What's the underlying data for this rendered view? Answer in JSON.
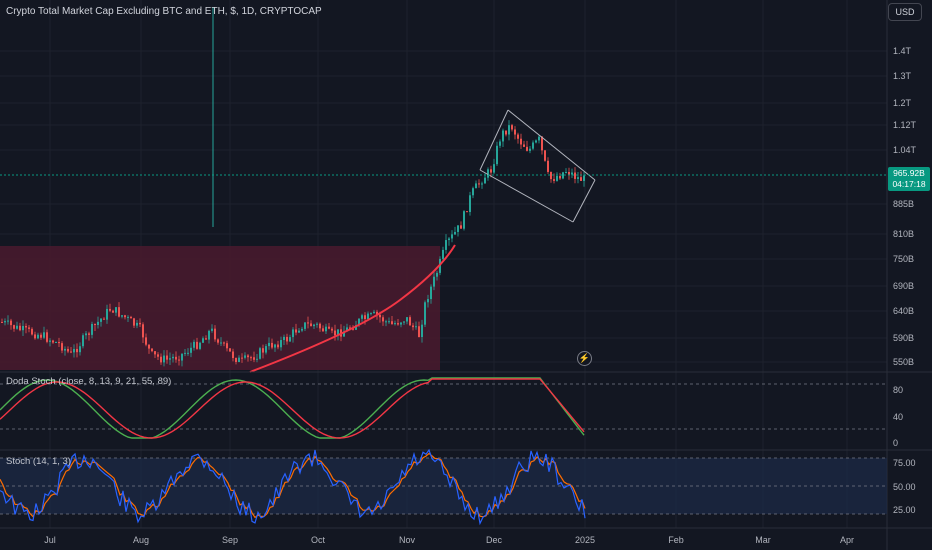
{
  "header": {
    "title": "Crypto Total Market Cap Excluding BTC and ETH, $, 1D, CRYPTOCAP",
    "currency": "USD"
  },
  "price_axis": {
    "labels": [
      "1.4T",
      "1.3T",
      "1.2T",
      "1.12T",
      "1.04T",
      "885B",
      "810B",
      "750B",
      "690B",
      "640B",
      "590B",
      "550B"
    ]
  },
  "last_price": {
    "value": "965.92B",
    "countdown": "04:17:18",
    "color": "#089981"
  },
  "time_axis": {
    "labels": [
      "Jul",
      "Aug",
      "Sep",
      "Oct",
      "Nov",
      "Dec",
      "2025",
      "Feb",
      "Mar",
      "Apr"
    ]
  },
  "indicators": {
    "doda": {
      "label": "Doda Stoch (close, 8, 13, 9, 21, 55, 89)",
      "ticks": [
        "80",
        "40",
        "0"
      ]
    },
    "stoch": {
      "label": "Stoch (14, 1, 3)",
      "ticks": [
        "75.00",
        "50.00",
        "25.00"
      ]
    }
  },
  "colors": {
    "up": "#26a69a",
    "down": "#ef5350",
    "zone": "#4a1a2e",
    "curve": "#f23645",
    "stoch_k": "#2962ff",
    "stoch_d": "#ff6d00",
    "doda_green": "#4caf50",
    "doda_red": "#f23645"
  },
  "icons": {
    "alert": "lightning-icon"
  }
}
